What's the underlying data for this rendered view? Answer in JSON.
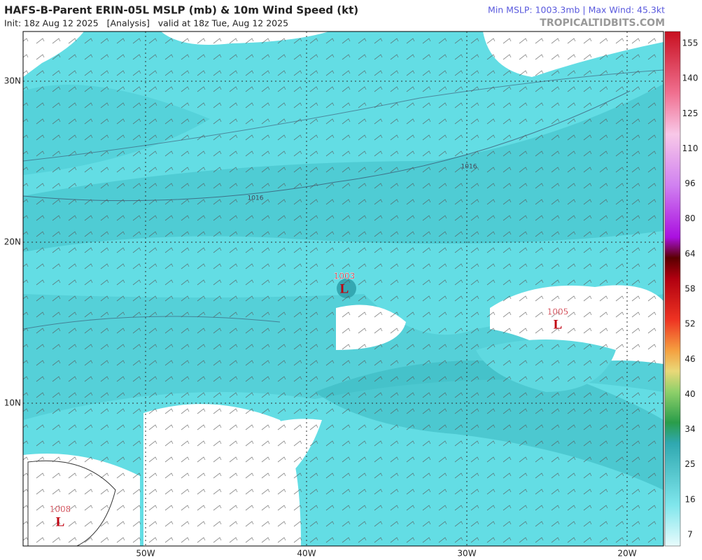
{
  "header": {
    "title": "HAFS-B-Parent ERIN-05L MSLP (mb) & 10m Wind Speed (kt)",
    "subtitle": "Init: 18z Aug 12 2025   [Analysis]   valid at 18z Tue, Aug 12 2025",
    "stats": "Min MSLP: 1003.3mb | Max Wind: 45.3kt",
    "site": "TROPICALTIDBITS.COM"
  },
  "map": {
    "lat_labels": [
      "30N",
      "20N",
      "10N"
    ],
    "lon_labels": [
      "50W",
      "40W",
      "30W",
      "20W"
    ],
    "contour_labels": [
      "1016",
      "1016"
    ],
    "lows": [
      {
        "pressure": "1003",
        "symbol": "L"
      },
      {
        "pressure": "1005",
        "symbol": "L"
      },
      {
        "pressure": "1008",
        "symbol": "L"
      }
    ]
  },
  "colorbar": {
    "labels": [
      "155",
      "140",
      "125",
      "110",
      "96",
      "80",
      "64",
      "58",
      "52",
      "46",
      "40",
      "34",
      "25",
      "16",
      "7"
    ]
  }
}
